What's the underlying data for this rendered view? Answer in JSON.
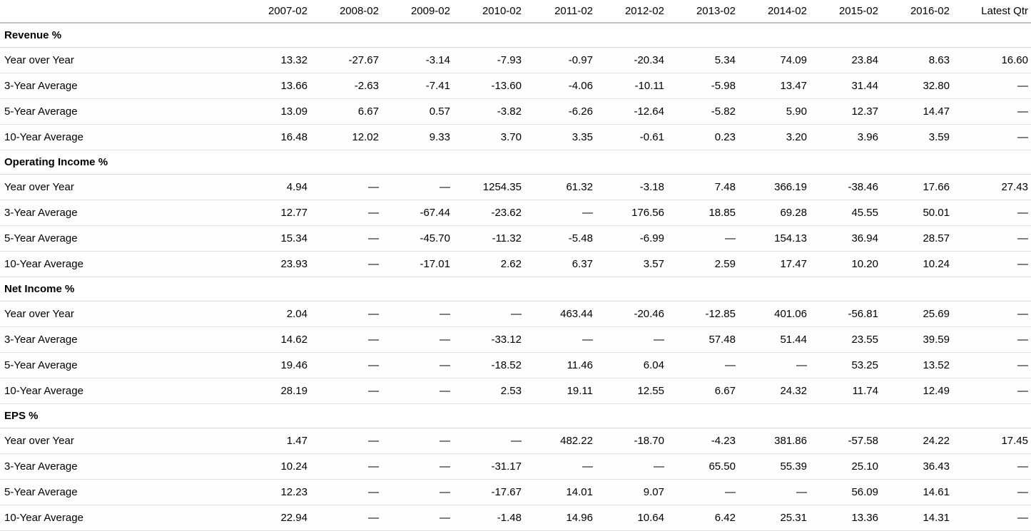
{
  "colors": {
    "background": "#ffffff",
    "text": "#000000",
    "header_divider": "#c3c3c3",
    "row_divider": "#e0e0e0"
  },
  "chart_data": {
    "type": "table",
    "row_label_header": "",
    "columns": [
      "2007-02",
      "2008-02",
      "2009-02",
      "2010-02",
      "2011-02",
      "2012-02",
      "2013-02",
      "2014-02",
      "2015-02",
      "2016-02",
      "Latest Qtr"
    ],
    "sections": [
      {
        "title": "Revenue %",
        "rows": [
          {
            "label": "Year over Year",
            "values": [
              "13.32",
              "-27.67",
              "-3.14",
              "-7.93",
              "-0.97",
              "-20.34",
              "5.34",
              "74.09",
              "23.84",
              "8.63",
              "16.60"
            ]
          },
          {
            "label": "3-Year Average",
            "values": [
              "13.66",
              "-2.63",
              "-7.41",
              "-13.60",
              "-4.06",
              "-10.11",
              "-5.98",
              "13.47",
              "31.44",
              "32.80",
              "—"
            ]
          },
          {
            "label": "5-Year Average",
            "values": [
              "13.09",
              "6.67",
              "0.57",
              "-3.82",
              "-6.26",
              "-12.64",
              "-5.82",
              "5.90",
              "12.37",
              "14.47",
              "—"
            ]
          },
          {
            "label": "10-Year Average",
            "values": [
              "16.48",
              "12.02",
              "9.33",
              "3.70",
              "3.35",
              "-0.61",
              "0.23",
              "3.20",
              "3.96",
              "3.59",
              "—"
            ]
          }
        ]
      },
      {
        "title": "Operating Income %",
        "rows": [
          {
            "label": "Year over Year",
            "values": [
              "4.94",
              "—",
              "—",
              "1254.35",
              "61.32",
              "-3.18",
              "7.48",
              "366.19",
              "-38.46",
              "17.66",
              "27.43"
            ]
          },
          {
            "label": "3-Year Average",
            "values": [
              "12.77",
              "—",
              "-67.44",
              "-23.62",
              "—",
              "176.56",
              "18.85",
              "69.28",
              "45.55",
              "50.01",
              "—"
            ]
          },
          {
            "label": "5-Year Average",
            "values": [
              "15.34",
              "—",
              "-45.70",
              "-11.32",
              "-5.48",
              "-6.99",
              "—",
              "154.13",
              "36.94",
              "28.57",
              "—"
            ]
          },
          {
            "label": "10-Year Average",
            "values": [
              "23.93",
              "—",
              "-17.01",
              "2.62",
              "6.37",
              "3.57",
              "2.59",
              "17.47",
              "10.20",
              "10.24",
              "—"
            ]
          }
        ]
      },
      {
        "title": "Net Income %",
        "rows": [
          {
            "label": "Year over Year",
            "values": [
              "2.04",
              "—",
              "—",
              "—",
              "463.44",
              "-20.46",
              "-12.85",
              "401.06",
              "-56.81",
              "25.69",
              "—"
            ]
          },
          {
            "label": "3-Year Average",
            "values": [
              "14.62",
              "—",
              "—",
              "-33.12",
              "—",
              "—",
              "57.48",
              "51.44",
              "23.55",
              "39.59",
              "—"
            ]
          },
          {
            "label": "5-Year Average",
            "values": [
              "19.46",
              "—",
              "—",
              "-18.52",
              "11.46",
              "6.04",
              "—",
              "—",
              "53.25",
              "13.52",
              "—"
            ]
          },
          {
            "label": "10-Year Average",
            "values": [
              "28.19",
              "—",
              "—",
              "2.53",
              "19.11",
              "12.55",
              "6.67",
              "24.32",
              "11.74",
              "12.49",
              "—"
            ]
          }
        ]
      },
      {
        "title": "EPS %",
        "rows": [
          {
            "label": "Year over Year",
            "values": [
              "1.47",
              "—",
              "—",
              "—",
              "482.22",
              "-18.70",
              "-4.23",
              "381.86",
              "-57.58",
              "24.22",
              "17.45"
            ]
          },
          {
            "label": "3-Year Average",
            "values": [
              "10.24",
              "—",
              "—",
              "-31.17",
              "—",
              "—",
              "65.50",
              "55.39",
              "25.10",
              "36.43",
              "—"
            ]
          },
          {
            "label": "5-Year Average",
            "values": [
              "12.23",
              "—",
              "—",
              "-17.67",
              "14.01",
              "9.07",
              "—",
              "—",
              "56.09",
              "14.61",
              "—"
            ]
          },
          {
            "label": "10-Year Average",
            "values": [
              "22.94",
              "—",
              "—",
              "-1.48",
              "14.96",
              "10.64",
              "6.42",
              "25.31",
              "13.36",
              "14.31",
              "—"
            ]
          }
        ]
      }
    ]
  }
}
